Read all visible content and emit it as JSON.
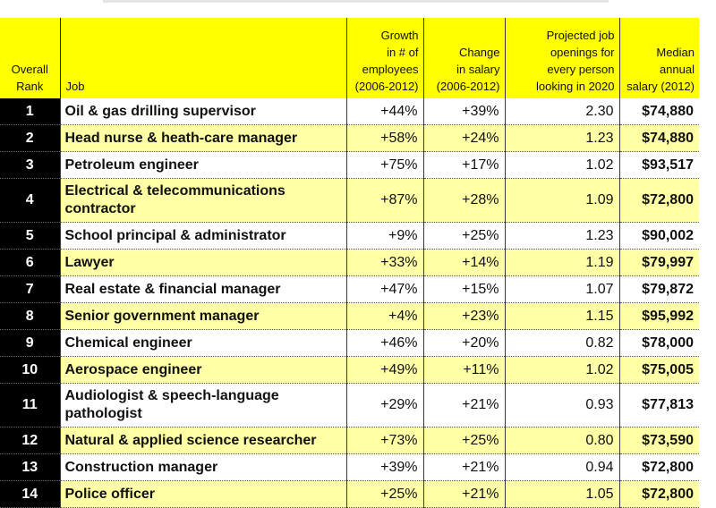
{
  "header": {
    "rank": "Overall\nRank",
    "job": "Job",
    "growth": "Growth\nin # of\nemployees\n(2006-2012)",
    "change": "Change\nin salary\n(2006-2012)",
    "projected": "Projected job\nopenings for\nevery person\nlooking in 2020",
    "salary": "Median\nannual\nsalary (2012)"
  },
  "rows": [
    {
      "rank": "1",
      "job": "Oil & gas drilling supervisor",
      "growth": "+44%",
      "change": "+39%",
      "projected": "2.30",
      "salary": "$74,880"
    },
    {
      "rank": "2",
      "job": "Head nurse & heath-care manager",
      "growth": "+58%",
      "change": "+24%",
      "projected": "1.23",
      "salary": "$74,880"
    },
    {
      "rank": "3",
      "job": "Petroleum engineer",
      "growth": "+75%",
      "change": "+17%",
      "projected": "1.02",
      "salary": "$93,517"
    },
    {
      "rank": "4",
      "job": "Electrical & telecommunications contractor",
      "growth": "+87%",
      "change": "+28%",
      "projected": "1.09",
      "salary": "$72,800"
    },
    {
      "rank": "5",
      "job": "School principal & administrator",
      "growth": "+9%",
      "change": "+25%",
      "projected": "1.23",
      "salary": "$90,002"
    },
    {
      "rank": "6",
      "job": "Lawyer",
      "growth": "+33%",
      "change": "+14%",
      "projected": "1.19",
      "salary": "$79,997"
    },
    {
      "rank": "7",
      "job": "Real estate & financial manager",
      "growth": "+47%",
      "change": "+15%",
      "projected": "1.07",
      "salary": "$79,872"
    },
    {
      "rank": "8",
      "job": "Senior government manager",
      "growth": "+4%",
      "change": "+23%",
      "projected": "1.15",
      "salary": "$95,992"
    },
    {
      "rank": "9",
      "job": "Chemical engineer",
      "growth": "+46%",
      "change": "+20%",
      "projected": "0.82",
      "salary": "$78,000"
    },
    {
      "rank": "10",
      "job": "Aerospace engineer",
      "growth": "+49%",
      "change": "+11%",
      "projected": "1.02",
      "salary": "$75,005"
    },
    {
      "rank": "11",
      "job": "Audiologist & speech-language pathologist",
      "growth": "+29%",
      "change": "+21%",
      "projected": "0.93",
      "salary": "$77,813"
    },
    {
      "rank": "12",
      "job": "Natural & applied science researcher",
      "growth": "+73%",
      "change": "+25%",
      "projected": "0.80",
      "salary": "$73,590"
    },
    {
      "rank": "13",
      "job": "Construction manager",
      "growth": "+39%",
      "change": "+21%",
      "projected": "0.94",
      "salary": "$72,800"
    },
    {
      "rank": "14",
      "job": "Police officer",
      "growth": "+25%",
      "change": "+21%",
      "projected": "1.05",
      "salary": "$72,800"
    }
  ]
}
